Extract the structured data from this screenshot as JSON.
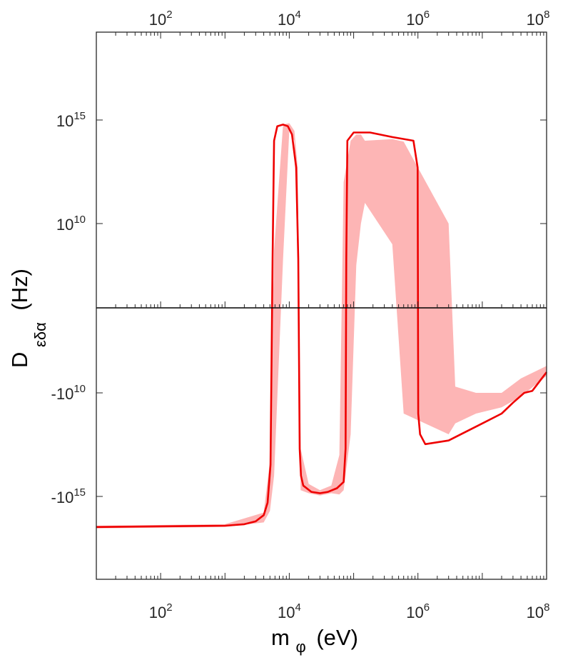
{
  "chart_data": {
    "type": "line",
    "xscale": "log",
    "yscale": "symlog",
    "xlim": [
      10,
      100000000
    ],
    "xlabel": {
      "main": "m",
      "sub": "φ",
      "unit": "(eV)"
    },
    "ylabel": {
      "main": "D",
      "sub": "εδα",
      "unit": "(Hz)"
    },
    "x_tick_labels": [
      {
        "value": 100,
        "base": "10",
        "exp": "2"
      },
      {
        "value": 10000,
        "base": "10",
        "exp": "4"
      },
      {
        "value": 1000000,
        "base": "10",
        "exp": "6"
      },
      {
        "value": 100000000,
        "base": "10",
        "exp": "8"
      }
    ],
    "y_tick_labels": [
      {
        "value": 1000000000000000.0,
        "base": "10",
        "exp": "15"
      },
      {
        "value": 10000000000.0,
        "base": "10",
        "exp": "10"
      },
      {
        "value": -10000000000.0,
        "base": "-10",
        "exp": "10"
      },
      {
        "value": -1000000000000000.0,
        "base": "-10",
        "exp": "15"
      }
    ],
    "grid": false,
    "colors": {
      "line": "#ee0000",
      "band": "#fdb5b5",
      "axes": "#262626",
      "zero_line": "#000000"
    },
    "series": [
      {
        "x": [
          10,
          1000,
          2000,
          3000,
          4000,
          4600,
          5100,
          5500,
          5800,
          6500,
          8000,
          9500,
          11000,
          12800,
          13800,
          14500,
          15200,
          16500,
          22000,
          30000,
          40000,
          55000,
          70000,
          75000,
          77000,
          80000,
          100000,
          180000,
          400000,
          850000,
          990000,
          1010000,
          1080000,
          1300000,
          3000000,
          10000000,
          20000000,
          30000000,
          45000000,
          60000000,
          100000000
        ],
        "y": [
          -3e+16,
          -2.6e+16,
          -2.2e+16,
          -1.6e+16,
          -8000000000000000.0,
          -2000000000000000.0,
          -30000000000000.0,
          200000000.0,
          100000000000000.0,
          500000000000000.0,
          600000000000000.0,
          500000000000000.0,
          200000000000000.0,
          5000000000000.0,
          200000000.0,
          -5000000000000.0,
          -100000000000000.0,
          -300000000000000.0,
          -600000000000000.0,
          -700000000000000.0,
          -600000000000000.0,
          -400000000000000.0,
          -200000000000000.0,
          -5000000000000.0,
          200000000.0,
          100000000000000.0,
          250000000000000.0,
          250000000000000.0,
          150000000000000.0,
          100000000000000.0,
          5000000000000.0,
          -100000000000.0,
          -1000000000000.0,
          -3000000000000.0,
          -2000000000000.0,
          -300000000000.0,
          -100000000000.0,
          -30000000000.0,
          -10000000000.0,
          -8000000000.0,
          -1000000000.0
        ]
      }
    ],
    "band": {
      "x": [
        10,
        1000,
        4000,
        5000,
        5800,
        8000,
        10000,
        12000,
        13500,
        15000,
        20000,
        30000,
        45000,
        60000,
        70000,
        90000,
        110000,
        130000,
        150000,
        400000,
        600000,
        3000000,
        3800000,
        8000000,
        20000000,
        40000000,
        100000000
      ],
      "y_upper": [
        -2.6e+16,
        -2.2e+16,
        -6000000000000000.0,
        -20000000000000.0,
        500000000.0,
        600000000000000.0,
        700000000000000.0,
        300000000000000.0,
        5000000000000.0,
        -5000000000000.0,
        -250000000000000.0,
        -500000000000000.0,
        -300000000000000.0,
        -10000000000000.0,
        1000000000000.0,
        100000000000000.0,
        200000000000000.0,
        200000000000000.0,
        100000000000000.0,
        120000000000000.0,
        90000000000000.0,
        10000000000.0,
        -5000000000.0,
        -10000000000.0,
        -10000000000.0,
        -2000000000.0,
        -500000000.0
      ],
      "y_lower": [
        -3.5e+16,
        -3e+16,
        -1.8e+16,
        -5000000000000000.0,
        -100000000000000.0,
        200000000.0,
        300000000000000.0,
        100000000000000.0,
        100000000.0,
        -500000000000000.0,
        -700000000000000.0,
        -900000000000000.0,
        -700000000000000.0,
        -800000000000000.0,
        -500000000000000.0,
        -1000000000000.0,
        100000000.0,
        10000000000.0,
        100000000000.0,
        1000000000.0,
        -100000000000.0,
        -1000000000000.0,
        -300000000000.0,
        -100000000000.0,
        -50000000000.0,
        -15000000000.0,
        -1500000000.0
      ]
    }
  }
}
